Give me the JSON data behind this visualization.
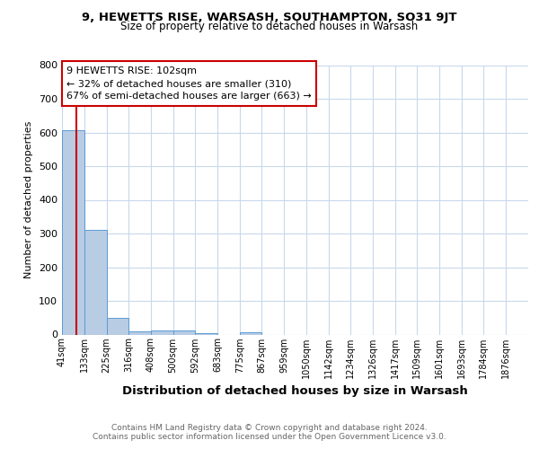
{
  "title1": "9, HEWETTS RISE, WARSASH, SOUTHAMPTON, SO31 9JT",
  "title2": "Size of property relative to detached houses in Warsash",
  "xlabel": "Distribution of detached houses by size in Warsash",
  "ylabel": "Number of detached properties",
  "bin_labels": [
    "41sqm",
    "133sqm",
    "225sqm",
    "316sqm",
    "408sqm",
    "500sqm",
    "592sqm",
    "683sqm",
    "775sqm",
    "867sqm",
    "959sqm",
    "1050sqm",
    "1142sqm",
    "1234sqm",
    "1326sqm",
    "1417sqm",
    "1509sqm",
    "1601sqm",
    "1693sqm",
    "1784sqm",
    "1876sqm"
  ],
  "bin_edges": [
    41,
    133,
    225,
    316,
    408,
    500,
    592,
    683,
    775,
    867,
    959,
    1050,
    1142,
    1234,
    1326,
    1417,
    1509,
    1601,
    1693,
    1784,
    1876
  ],
  "bar_heights": [
    608,
    310,
    50,
    10,
    12,
    12,
    5,
    0,
    7,
    0,
    0,
    0,
    0,
    0,
    0,
    0,
    0,
    0,
    0,
    0
  ],
  "bar_color": "#b8cce4",
  "bar_edgecolor": "#5b9bd5",
  "property_size": 102,
  "property_line_color": "#cc0000",
  "ylim": [
    0,
    800
  ],
  "yticks": [
    0,
    100,
    200,
    300,
    400,
    500,
    600,
    700,
    800
  ],
  "annotation_line1": "9 HEWETTS RISE: 102sqm",
  "annotation_line2": "← 32% of detached houses are smaller (310)",
  "annotation_line3": "67% of semi-detached houses are larger (663) →",
  "annotation_box_color": "#ffffff",
  "annotation_box_edgecolor": "#cc0000",
  "footnote": "Contains HM Land Registry data © Crown copyright and database right 2024.\nContains public sector information licensed under the Open Government Licence v3.0.",
  "background_color": "#ffffff",
  "grid_color": "#c8d8ec"
}
